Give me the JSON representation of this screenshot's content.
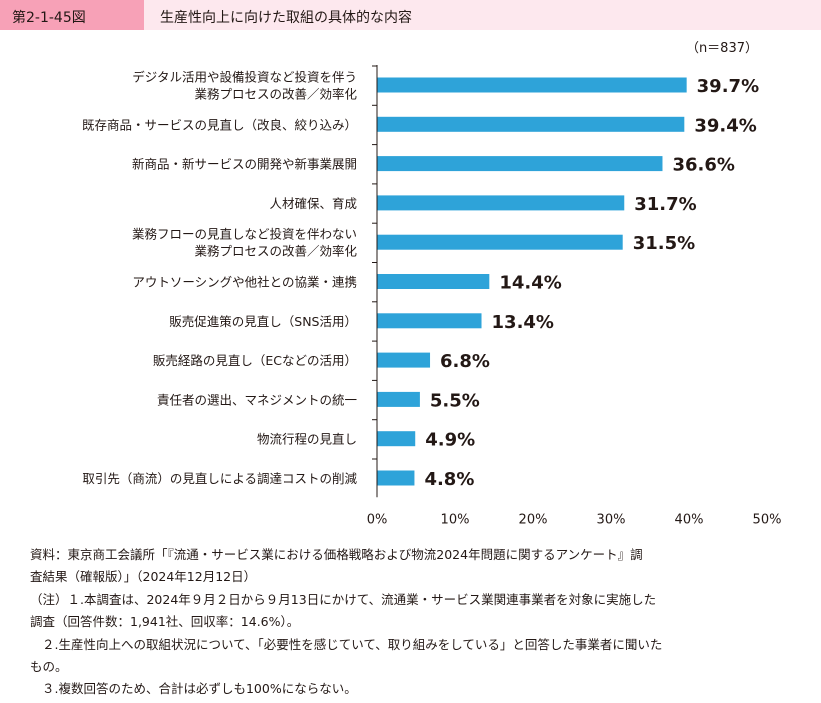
{
  "header": {
    "figure_no": "第2-1-45図",
    "title": "生産性向上に向けた取組の具体的な内容"
  },
  "chart_data": {
    "type": "bar",
    "orientation": "horizontal",
    "sample_note": "（n＝837）",
    "categories": [
      [
        "デジタル活用や設備投資など投資を伴う",
        "業務プロセスの改善／効率化"
      ],
      [
        "既存商品・サービスの見直し（改良、絞り込み）"
      ],
      [
        "新商品・新サービスの開発や新事業展開"
      ],
      [
        "人材確保、育成"
      ],
      [
        "業務フローの見直しなど投資を伴わない",
        "業務プロセスの改善／効率化"
      ],
      [
        "アウトソーシングや他社との協業・連携"
      ],
      [
        "販売促進策の見直し（SNS活用）"
      ],
      [
        "販売経路の見直し（ECなどの活用）"
      ],
      [
        "責任者の選出、マネジメントの統一"
      ],
      [
        "物流行程の見直し"
      ],
      [
        "取引先（商流）の見直しによる調達コストの削減"
      ]
    ],
    "values": [
      39.7,
      39.4,
      36.6,
      31.7,
      31.5,
      14.4,
      13.4,
      6.8,
      5.5,
      4.9,
      4.8
    ],
    "value_labels": [
      "39.7%",
      "39.4%",
      "36.6%",
      "31.7%",
      "31.5%",
      "14.4%",
      "13.4%",
      "6.8%",
      "5.5%",
      "4.9%",
      "4.8%"
    ],
    "xlim": [
      0,
      50
    ],
    "xticks": [
      "0%",
      "10%",
      "20%",
      "30%",
      "40%",
      "50%"
    ],
    "bar_color": "#2ea3d9",
    "grid": false
  },
  "notes": [
    "資料：東京商工会議所「『流通・サービス業における価格戦略および物流2024年問題に関するアンケート』調",
    "査結果（確報版）」（2024年12月12日）",
    "（注）１.本調査は、2024年９月２日から９月13日にかけて、流通業・サービス業関連事業者を対象に実施した",
    "調査（回答件数：1,941社、回収率：14.6%）。",
    "２.生産性向上への取組状況について、「必要性を感じていて、取り組みをしている」と回答した事業者に聞いた",
    "もの。",
    "３.複数回答のため、合計は必ずしも100%にならない。"
  ],
  "colors": {
    "header_bg": "#fde8ee",
    "header_tag": "#f7a1b7"
  }
}
